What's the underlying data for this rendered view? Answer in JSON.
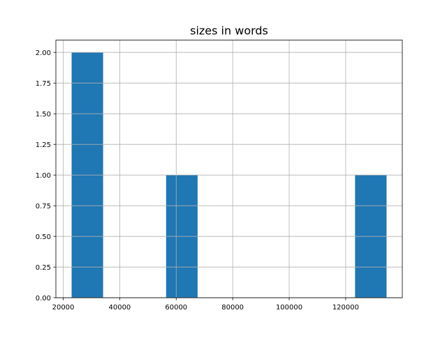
{
  "chart_data": {
    "type": "bar",
    "title": "sizes in words",
    "xlabel": "",
    "ylabel": "",
    "bin_edges": [
      22974,
      34124,
      45274,
      56424,
      67574,
      78724,
      89874,
      101024,
      112174,
      123324,
      134474
    ],
    "values": [
      2,
      0,
      0,
      1,
      0,
      0,
      0,
      0,
      0,
      1
    ],
    "xlim": [
      17400,
      140050
    ],
    "ylim": [
      0,
      2.1
    ],
    "xticks": [
      20000,
      40000,
      60000,
      80000,
      100000,
      120000
    ],
    "xtick_labels": [
      "20000",
      "40000",
      "60000",
      "80000",
      "100000",
      "120000"
    ],
    "yticks": [
      0,
      0.25,
      0.5,
      0.75,
      1.0,
      1.25,
      1.5,
      1.75,
      2.0
    ],
    "ytick_labels": [
      "0.00",
      "0.25",
      "0.50",
      "0.75",
      "1.00",
      "1.25",
      "1.50",
      "1.75",
      "2.00"
    ],
    "grid": true,
    "bar_color": "#1f77b4",
    "grid_color": "#b0b0b0"
  }
}
